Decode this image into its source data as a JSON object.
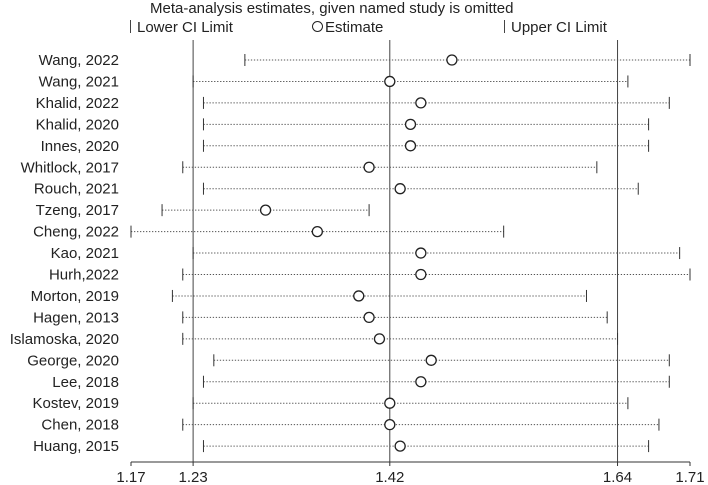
{
  "chart_data": {
    "type": "forest",
    "title": "Meta-analysis estimates, given named study is omitted",
    "legend": {
      "lower": "Lower CI Limit",
      "estimate": "Estimate",
      "upper": "Upper CI Limit",
      "placement": "top"
    },
    "x_ticks": [
      1.17,
      1.23,
      1.42,
      1.64,
      1.71
    ],
    "x_tick_labels": [
      "1.17",
      "1.23",
      "1.42",
      "1.64",
      "1.71"
    ],
    "reference_lines": [
      1.23,
      1.42,
      1.64
    ],
    "xlim": [
      1.17,
      1.71
    ],
    "studies": [
      {
        "name": "Wang, 2022",
        "lower": 1.28,
        "estimate": 1.48,
        "upper": 1.71
      },
      {
        "name": "Wang, 2021",
        "lower": 1.23,
        "estimate": 1.42,
        "upper": 1.65
      },
      {
        "name": "Khalid, 2022",
        "lower": 1.24,
        "estimate": 1.45,
        "upper": 1.69
      },
      {
        "name": "Khalid, 2020",
        "lower": 1.24,
        "estimate": 1.44,
        "upper": 1.67
      },
      {
        "name": "Innes, 2020",
        "lower": 1.24,
        "estimate": 1.44,
        "upper": 1.67
      },
      {
        "name": "Whitlock, 2017",
        "lower": 1.22,
        "estimate": 1.4,
        "upper": 1.62
      },
      {
        "name": "Rouch, 2021",
        "lower": 1.24,
        "estimate": 1.43,
        "upper": 1.66
      },
      {
        "name": "Tzeng, 2017",
        "lower": 1.2,
        "estimate": 1.3,
        "upper": 1.4
      },
      {
        "name": "Cheng, 2022",
        "lower": 1.17,
        "estimate": 1.35,
        "upper": 1.53
      },
      {
        "name": "Kao, 2021",
        "lower": 1.23,
        "estimate": 1.45,
        "upper": 1.7
      },
      {
        "name": "Hurh,2022",
        "lower": 1.22,
        "estimate": 1.45,
        "upper": 1.71
      },
      {
        "name": "Morton, 2019",
        "lower": 1.21,
        "estimate": 1.39,
        "upper": 1.61
      },
      {
        "name": "Hagen, 2013",
        "lower": 1.22,
        "estimate": 1.4,
        "upper": 1.63
      },
      {
        "name": "Islamoska, 2020",
        "lower": 1.22,
        "estimate": 1.41,
        "upper": 1.64
      },
      {
        "name": "George, 2020",
        "lower": 1.25,
        "estimate": 1.46,
        "upper": 1.69
      },
      {
        "name": "Lee, 2018",
        "lower": 1.24,
        "estimate": 1.45,
        "upper": 1.69
      },
      {
        "name": "Kostev, 2019",
        "lower": 1.23,
        "estimate": 1.42,
        "upper": 1.65
      },
      {
        "name": "Chen, 2018",
        "lower": 1.22,
        "estimate": 1.42,
        "upper": 1.68
      },
      {
        "name": "Huang, 2015",
        "lower": 1.24,
        "estimate": 1.43,
        "upper": 1.67
      }
    ]
  }
}
